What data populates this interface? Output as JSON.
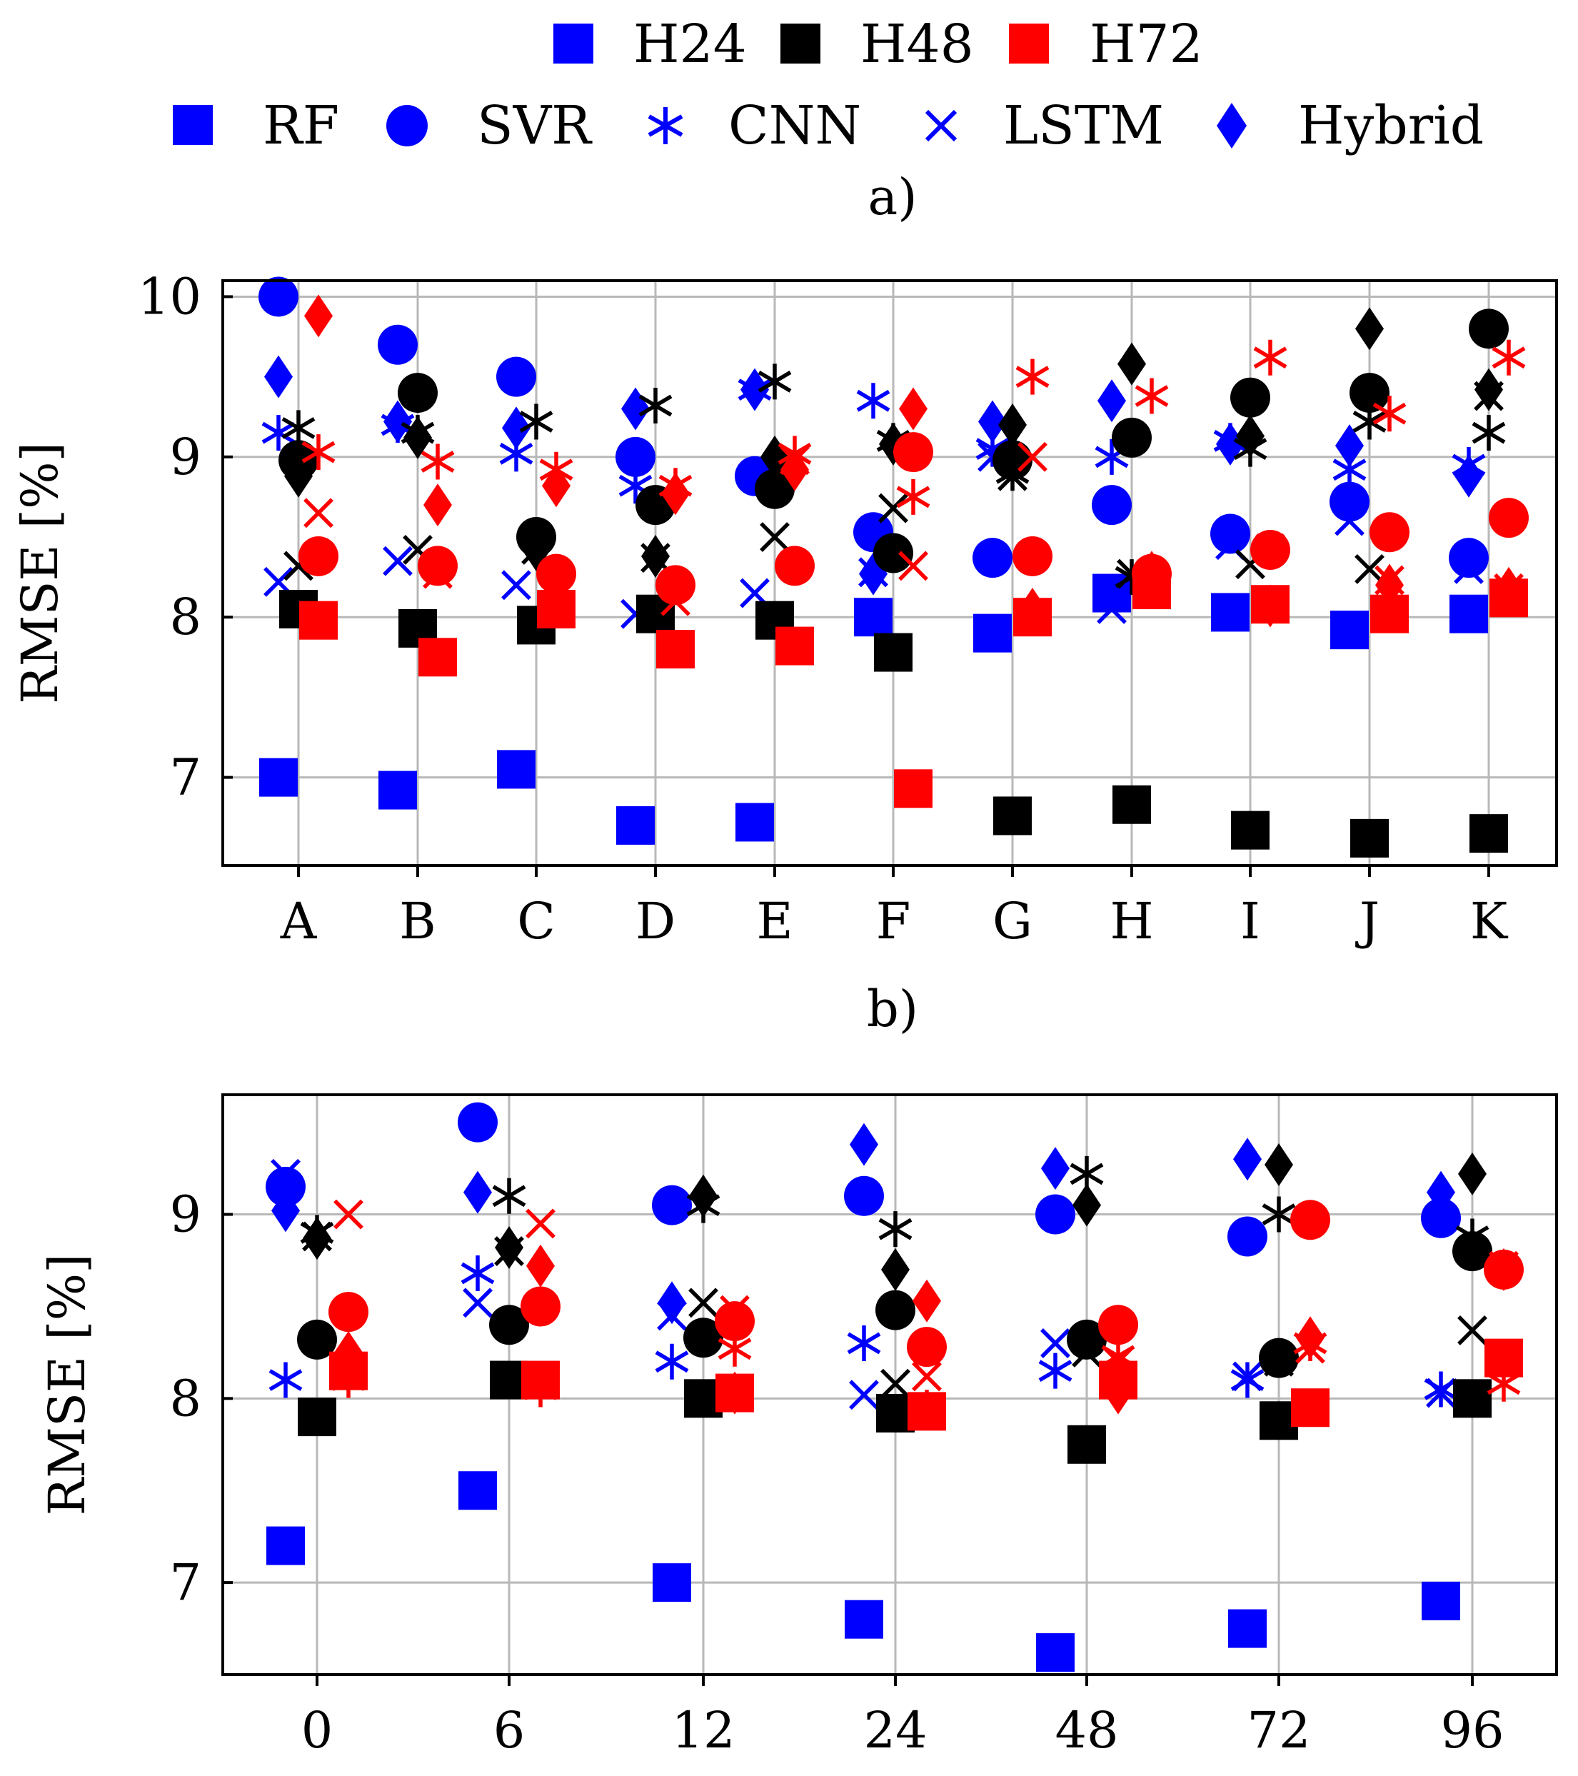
{
  "legend": {
    "horizons": [
      {
        "name": "H24",
        "color": "#0000ff"
      },
      {
        "name": "H48",
        "color": "#000000"
      },
      {
        "name": "H72",
        "color": "#ff0000"
      }
    ],
    "models": [
      {
        "name": "RF",
        "marker": "square"
      },
      {
        "name": "SVR",
        "marker": "circle"
      },
      {
        "name": "CNN",
        "marker": "asterisk"
      },
      {
        "name": "LSTM",
        "marker": "cross"
      },
      {
        "name": "Hybrid",
        "marker": "diamond"
      }
    ]
  },
  "chart_data": [
    {
      "type": "scatter",
      "title": "a)",
      "xlabel": "",
      "ylabel": "RMSE [%]",
      "ylim": [
        6.45,
        10.1
      ],
      "yticks": [
        7,
        8,
        9,
        10
      ],
      "grid": true,
      "categories": [
        "A",
        "B",
        "C",
        "D",
        "E",
        "F",
        "G",
        "H",
        "I",
        "J",
        "K"
      ],
      "series": [
        {
          "horizon": "H24",
          "model": "RF",
          "values": [
            7.0,
            6.92,
            7.05,
            6.7,
            6.72,
            8.0,
            7.9,
            8.15,
            8.03,
            7.92,
            8.02
          ]
        },
        {
          "horizon": "H24",
          "model": "SVR",
          "values": [
            10.0,
            9.7,
            9.5,
            9.0,
            8.88,
            8.53,
            8.37,
            8.7,
            8.52,
            8.72,
            8.37
          ]
        },
        {
          "horizon": "H24",
          "model": "CNN",
          "values": [
            9.15,
            9.2,
            9.02,
            8.82,
            9.42,
            9.35,
            9.05,
            9.0,
            9.1,
            8.92,
            8.95
          ]
        },
        {
          "horizon": "H24",
          "model": "LSTM",
          "values": [
            8.22,
            8.35,
            8.2,
            8.02,
            8.15,
            8.28,
            9.0,
            8.05,
            8.45,
            8.6,
            8.3
          ]
        },
        {
          "horizon": "H24",
          "model": "Hybrid",
          "values": [
            9.5,
            9.22,
            9.18,
            9.3,
            9.42,
            8.27,
            9.22,
            9.35,
            9.08,
            9.07,
            8.88
          ]
        },
        {
          "horizon": "H48",
          "model": "RF",
          "values": [
            8.05,
            7.93,
            7.95,
            8.02,
            7.98,
            7.78,
            6.76,
            6.83,
            6.67,
            6.62,
            6.65
          ]
        },
        {
          "horizon": "H48",
          "model": "SVR",
          "values": [
            8.98,
            9.4,
            8.5,
            8.7,
            8.8,
            8.4,
            8.98,
            9.12,
            9.37,
            9.4,
            9.8
          ]
        },
        {
          "horizon": "H48",
          "model": "CNN",
          "values": [
            9.18,
            9.15,
            9.22,
            9.32,
            9.47,
            9.1,
            8.9,
            8.25,
            9.05,
            9.22,
            9.15
          ]
        },
        {
          "horizon": "H48",
          "model": "LSTM",
          "values": [
            8.32,
            8.42,
            8.42,
            8.37,
            8.5,
            8.68,
            8.88,
            8.27,
            8.33,
            8.3,
            9.38
          ]
        },
        {
          "horizon": "H48",
          "model": "Hybrid",
          "values": [
            8.88,
            9.12,
            8.42,
            8.38,
            9.0,
            9.08,
            9.2,
            9.58,
            9.13,
            9.8,
            9.42
          ]
        },
        {
          "horizon": "H72",
          "model": "RF",
          "values": [
            7.98,
            7.75,
            8.05,
            7.8,
            7.82,
            6.93,
            8.0,
            8.17,
            8.08,
            8.02,
            8.12
          ]
        },
        {
          "horizon": "H72",
          "model": "SVR",
          "values": [
            8.38,
            8.32,
            8.27,
            8.2,
            8.32,
            9.03,
            8.38,
            8.27,
            8.42,
            8.53,
            8.62
          ]
        },
        {
          "horizon": "H72",
          "model": "CNN",
          "values": [
            9.03,
            8.97,
            8.92,
            8.82,
            9.02,
            8.75,
            9.5,
            9.38,
            9.62,
            9.27,
            9.62
          ]
        },
        {
          "horizon": "H72",
          "model": "LSTM",
          "values": [
            8.65,
            8.27,
            8.15,
            8.1,
            8.98,
            8.32,
            9.0,
            8.23,
            8.43,
            8.23,
            8.18
          ]
        },
        {
          "horizon": "H72",
          "model": "Hybrid",
          "values": [
            9.88,
            8.7,
            8.82,
            8.77,
            8.92,
            9.3,
            8.05,
            8.28,
            8.07,
            8.2,
            8.18
          ]
        }
      ]
    },
    {
      "type": "scatter",
      "title": "b)",
      "xlabel": "",
      "ylabel": "RMSE [%]",
      "ylim": [
        6.5,
        9.65
      ],
      "yticks": [
        7,
        8,
        9
      ],
      "grid": true,
      "categories": [
        "0",
        "6",
        "12",
        "24",
        "48",
        "72",
        "96"
      ],
      "series": [
        {
          "horizon": "H24",
          "model": "RF",
          "values": [
            7.2,
            7.5,
            7.0,
            6.8,
            6.62,
            6.75,
            6.9
          ]
        },
        {
          "horizon": "H24",
          "model": "SVR",
          "values": [
            9.15,
            9.5,
            9.05,
            9.1,
            9.0,
            8.88,
            8.98
          ]
        },
        {
          "horizon": "H24",
          "model": "CNN",
          "values": [
            8.1,
            8.68,
            8.2,
            8.3,
            8.15,
            8.1,
            8.05
          ]
        },
        {
          "horizon": "H24",
          "model": "LSTM",
          "values": [
            9.22,
            8.52,
            8.45,
            8.02,
            8.3,
            8.12,
            8.03
          ]
        },
        {
          "horizon": "H24",
          "model": "Hybrid",
          "values": [
            9.02,
            9.12,
            8.52,
            9.38,
            9.25,
            9.3,
            9.12
          ]
        },
        {
          "horizon": "H48",
          "model": "RF",
          "values": [
            7.9,
            8.1,
            8.0,
            7.92,
            7.75,
            7.88,
            8.0
          ]
        },
        {
          "horizon": "H48",
          "model": "SVR",
          "values": [
            8.32,
            8.4,
            8.33,
            8.48,
            8.32,
            8.22,
            8.8
          ]
        },
        {
          "horizon": "H48",
          "model": "CNN",
          "values": [
            8.9,
            9.1,
            9.05,
            8.92,
            9.22,
            9.0,
            8.88
          ]
        },
        {
          "horizon": "H48",
          "model": "LSTM",
          "values": [
            8.88,
            8.8,
            8.52,
            8.08,
            8.25,
            8.2,
            8.37
          ]
        },
        {
          "horizon": "H48",
          "model": "Hybrid",
          "values": [
            8.87,
            8.82,
            9.1,
            8.7,
            9.05,
            9.27,
            9.22
          ]
        },
        {
          "horizon": "H72",
          "model": "RF",
          "values": [
            8.15,
            8.1,
            8.03,
            7.93,
            8.1,
            7.95,
            8.22
          ]
        },
        {
          "horizon": "H72",
          "model": "SVR",
          "values": [
            8.47,
            8.5,
            8.42,
            8.28,
            8.4,
            8.97,
            8.7
          ]
        },
        {
          "horizon": "H72",
          "model": "CNN",
          "values": [
            8.1,
            8.05,
            8.27,
            7.95,
            8.23,
            8.3,
            8.08
          ]
        },
        {
          "horizon": "H72",
          "model": "LSTM",
          "values": [
            9.0,
            8.95,
            8.48,
            8.12,
            8.2,
            8.27,
            8.72
          ]
        },
        {
          "horizon": "H72",
          "model": "Hybrid",
          "values": [
            8.25,
            8.72,
            8.03,
            8.53,
            8.03,
            8.33,
            8.7
          ]
        }
      ]
    }
  ]
}
